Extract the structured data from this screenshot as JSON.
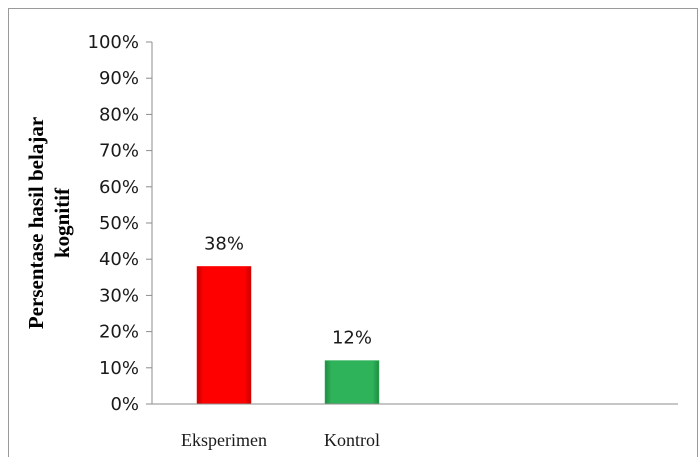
{
  "chart_data": {
    "type": "bar",
    "title": "",
    "xlabel": "",
    "ylabel_lines": [
      "Persentase hasil belajar",
      "kognitif"
    ],
    "categories": [
      "Eksperimen",
      "Kontrol"
    ],
    "values": [
      38,
      12
    ],
    "data_labels": [
      "38%",
      "12%"
    ],
    "bar_colors": [
      "#ff0000",
      "#2fb35a"
    ],
    "ylim": [
      0,
      100
    ],
    "ytick_values": [
      0,
      10,
      20,
      30,
      40,
      50,
      60,
      70,
      80,
      90,
      100
    ],
    "ytick_labels": [
      "0%",
      "10%",
      "20%",
      "30%",
      "40%",
      "50%",
      "60%",
      "70%",
      "80%",
      "90%",
      "100%"
    ],
    "grid": false,
    "legend": "none"
  }
}
